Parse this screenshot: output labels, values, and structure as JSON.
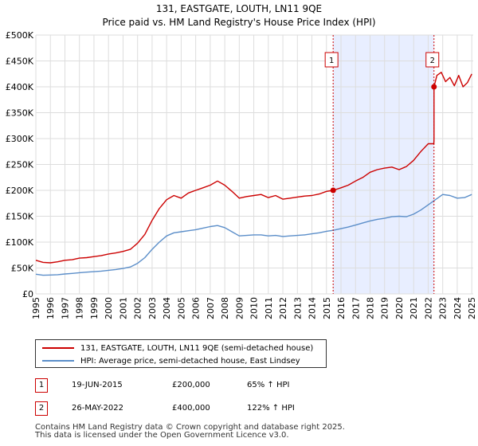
{
  "chart_data": {
    "type": "line",
    "title": "131, EASTGATE, LOUTH, LN11 9QE",
    "subtitle": "Price paid vs. HM Land Registry's House Price Index (HPI)",
    "xlim": [
      1995,
      2025.1
    ],
    "ylim": [
      0,
      500000
    ],
    "x_ticks": [
      1995,
      1996,
      1997,
      1998,
      1999,
      2000,
      2001,
      2002,
      2003,
      2004,
      2005,
      2006,
      2007,
      2008,
      2009,
      2010,
      2011,
      2012,
      2013,
      2014,
      2015,
      2016,
      2017,
      2018,
      2019,
      2020,
      2021,
      2022,
      2023,
      2024,
      2025
    ],
    "x_tick_labels": [
      "1995",
      "1996",
      "1997",
      "1998",
      "1999",
      "2000",
      "2001",
      "2002",
      "2003",
      "2004",
      "2005",
      "2006",
      "2007",
      "2008",
      "2009",
      "2010",
      "2011",
      "2012",
      "2013",
      "2014",
      "2015",
      "2016",
      "2017",
      "2018",
      "2019",
      "2020",
      "2021",
      "2022",
      "2023",
      "2024",
      "2025"
    ],
    "y_ticks": [
      0,
      50000,
      100000,
      150000,
      200000,
      250000,
      300000,
      350000,
      400000,
      450000,
      500000
    ],
    "y_tick_labels": [
      "£0",
      "£50K",
      "£100K",
      "£150K",
      "£200K",
      "£250K",
      "£300K",
      "£350K",
      "£400K",
      "£450K",
      "£500K"
    ],
    "grid": true,
    "shaded_region": {
      "x_start": 2015.46,
      "x_end": 2022.4,
      "color": "#e8eeff"
    },
    "series": [
      {
        "name": "131, EASTGATE, LOUTH, LN11 9QE (semi-detached house)",
        "color": "#cc0000",
        "x": [
          1995,
          1995.5,
          1996,
          1996.5,
          1997,
          1997.5,
          1998,
          1998.5,
          1999,
          1999.5,
          2000,
          2000.5,
          2001,
          2001.5,
          2002,
          2002.5,
          2003,
          2003.5,
          2004,
          2004.5,
          2005,
          2005.5,
          2006,
          2006.5,
          2007,
          2007.5,
          2008,
          2008.5,
          2009,
          2009.5,
          2010,
          2010.5,
          2011,
          2011.5,
          2012,
          2012.5,
          2013,
          2013.5,
          2014,
          2014.5,
          2015,
          2015.46,
          2015.46,
          2016,
          2016.5,
          2017,
          2017.5,
          2018,
          2018.5,
          2019,
          2019.5,
          2020,
          2020.5,
          2021,
          2021.5,
          2022,
          2022.39,
          2022.4,
          2022.4,
          2022.6,
          2022.9,
          2023.2,
          2023.5,
          2023.8,
          2024.1,
          2024.4,
          2024.7,
          2025
        ],
        "values": [
          65000,
          61000,
          60000,
          62000,
          65000,
          66000,
          69000,
          70000,
          72000,
          74000,
          77000,
          79000,
          82000,
          86000,
          98000,
          115000,
          142000,
          165000,
          182000,
          190000,
          185000,
          195000,
          200000,
          205000,
          210000,
          218000,
          210000,
          198000,
          185000,
          188000,
          190000,
          192000,
          186000,
          190000,
          183000,
          185000,
          187000,
          189000,
          190000,
          193000,
          198000,
          200000,
          200000,
          205000,
          210000,
          218000,
          225000,
          235000,
          240000,
          243000,
          245000,
          240000,
          246000,
          258000,
          275000,
          290000,
          290000,
          300000,
          400000,
          422000,
          428000,
          410000,
          418000,
          402000,
          422000,
          400000,
          408000,
          425000
        ]
      },
      {
        "name": "HPI: Average price, semi-detached house, East Lindsey",
        "color": "#5b8ec9",
        "x": [
          1995,
          1995.5,
          1996,
          1996.5,
          1997,
          1997.5,
          1998,
          1998.5,
          1999,
          1999.5,
          2000,
          2000.5,
          2001,
          2001.5,
          2002,
          2002.5,
          2003,
          2003.5,
          2004,
          2004.5,
          2005,
          2005.5,
          2006,
          2006.5,
          2007,
          2007.5,
          2008,
          2008.5,
          2009,
          2009.5,
          2010,
          2010.5,
          2011,
          2011.5,
          2012,
          2012.5,
          2013,
          2013.5,
          2014,
          2014.5,
          2015,
          2015.5,
          2016,
          2016.5,
          2017,
          2017.5,
          2018,
          2018.5,
          2019,
          2019.5,
          2020,
          2020.5,
          2021,
          2021.5,
          2022,
          2022.5,
          2023,
          2023.5,
          2024,
          2024.5,
          2025
        ],
        "values": [
          38000,
          36000,
          36500,
          37000,
          38500,
          39500,
          41000,
          42000,
          43000,
          44000,
          45500,
          47000,
          49000,
          52000,
          59000,
          70000,
          86000,
          100000,
          112000,
          118000,
          120000,
          122000,
          124000,
          127000,
          130000,
          132000,
          128000,
          120000,
          112000,
          113000,
          114000,
          114000,
          112000,
          113000,
          111000,
          112000,
          113000,
          114000,
          116000,
          118000,
          121000,
          123000,
          126000,
          129000,
          133000,
          137000,
          141000,
          144000,
          146000,
          149000,
          150000,
          149000,
          154000,
          162000,
          172000,
          182000,
          192000,
          190000,
          185000,
          186000,
          192000
        ]
      }
    ],
    "markers": [
      {
        "id": "1",
        "x": 2015.46,
        "y": 200000
      },
      {
        "id": "2",
        "x": 2022.4,
        "y": 400000
      }
    ]
  },
  "legend": {
    "red_label": "131, EASTGATE, LOUTH, LN11 9QE (semi-detached house)",
    "blue_label": "HPI: Average price, semi-detached house, East Lindsey"
  },
  "transactions": [
    {
      "id": "1",
      "date": "19-JUN-2015",
      "price": "£200,000",
      "hpi": "65% ↑ HPI"
    },
    {
      "id": "2",
      "date": "26-MAY-2022",
      "price": "£400,000",
      "hpi": "122% ↑ HPI"
    }
  ],
  "footer": {
    "line1": "Contains HM Land Registry data © Crown copyright and database right 2025.",
    "line2": "This data is licensed under the Open Government Licence v3.0."
  }
}
